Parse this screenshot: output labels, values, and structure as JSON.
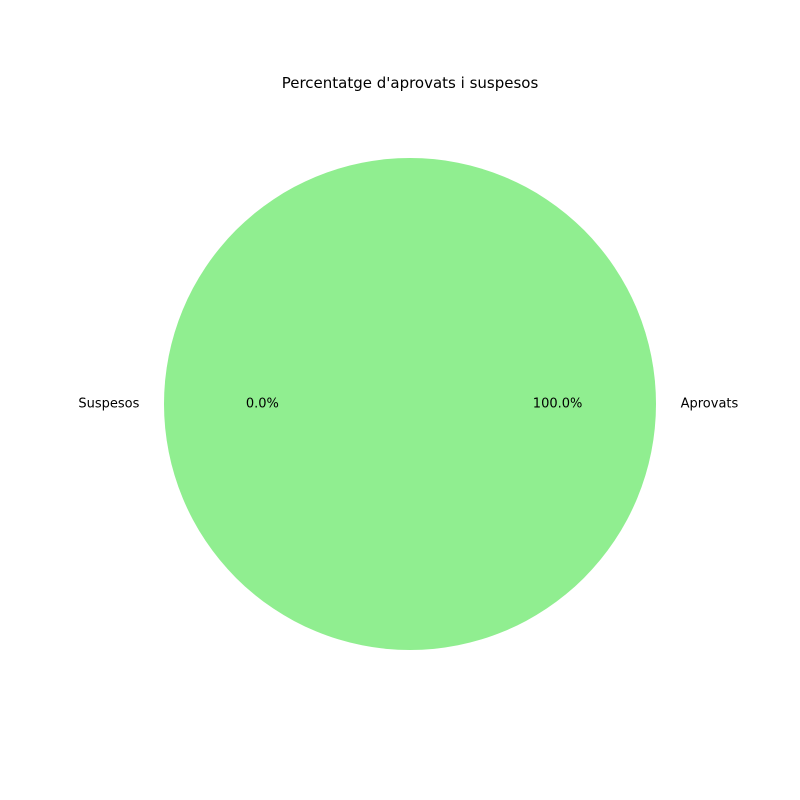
{
  "chart_data": {
    "type": "pie",
    "title": "Percentatge d'aprovats i suspesos",
    "categories": [
      "Aprovats",
      "Suspesos"
    ],
    "values": [
      100.0,
      0.0
    ],
    "percent_labels": [
      "100.0%",
      "0.0%"
    ],
    "colors": [
      "#90ee90",
      "#f08080"
    ],
    "start_angle_degrees": 180,
    "legend": "none"
  }
}
